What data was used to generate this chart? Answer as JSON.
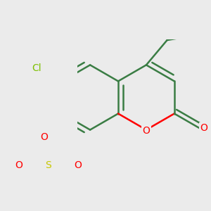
{
  "background_color": "#ebebeb",
  "bond_color": "#3a7d44",
  "bond_width": 1.8,
  "atom_colors": {
    "O": "#ff0000",
    "Cl": "#7dc000",
    "S": "#c8c800",
    "C": "#3a7d44"
  },
  "font_size_atoms": 10,
  "BL": 0.32,
  "fig_xlim": [
    -0.5,
    0.8
  ],
  "fig_ylim": [
    -0.65,
    0.65
  ]
}
